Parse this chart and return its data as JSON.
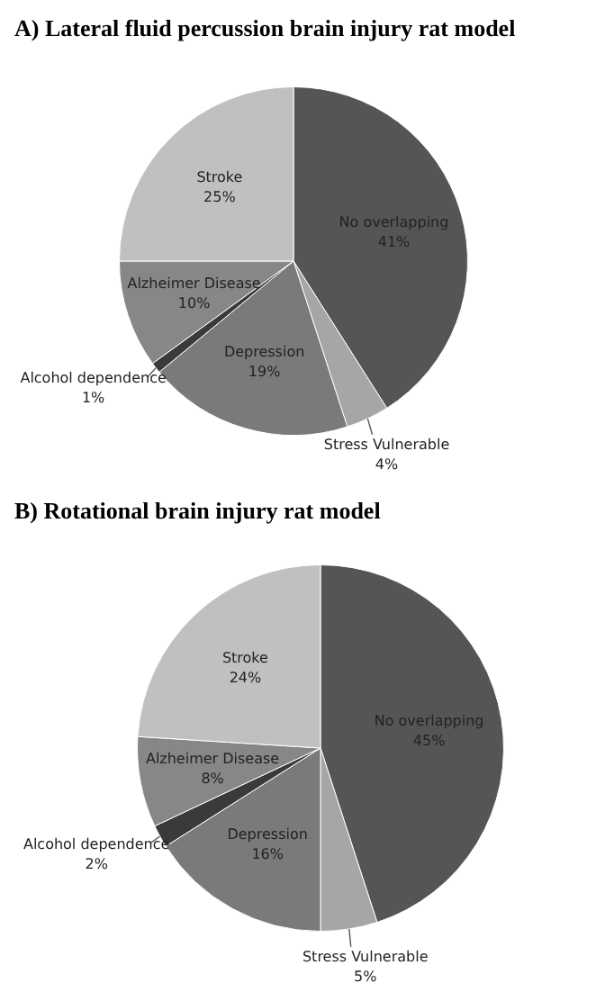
{
  "chart_data": [
    {
      "type": "pie",
      "title": "A)  Lateral fluid percussion brain injury rat model",
      "categories": [
        "No overlapping",
        "Stress Vulnerable",
        "Depression",
        "Alcohol dependence",
        "Alzheimer Disease",
        "Stroke"
      ],
      "values": [
        41,
        4,
        19,
        1,
        10,
        25
      ],
      "value_labels": [
        "41%",
        "4%",
        "19%",
        "1%",
        "10%",
        "25%"
      ],
      "colors": [
        "#555555",
        "#a6a6a6",
        "#7a7a7a",
        "#3a3a3a",
        "#878787",
        "#c0c0c0"
      ]
    },
    {
      "type": "pie",
      "title": "B) Rotational brain injury rat model",
      "categories": [
        "No overlapping",
        "Stress Vulnerable",
        "Depression",
        "Alcohol dependence",
        "Alzheimer Disease",
        "Stroke"
      ],
      "values": [
        45,
        5,
        16,
        2,
        8,
        24
      ],
      "value_labels": [
        "45%",
        "5%",
        "16%",
        "2%",
        "8%",
        "24%"
      ],
      "colors": [
        "#555555",
        "#a6a6a6",
        "#7a7a7a",
        "#3a3a3a",
        "#878787",
        "#c0c0c0"
      ]
    }
  ]
}
